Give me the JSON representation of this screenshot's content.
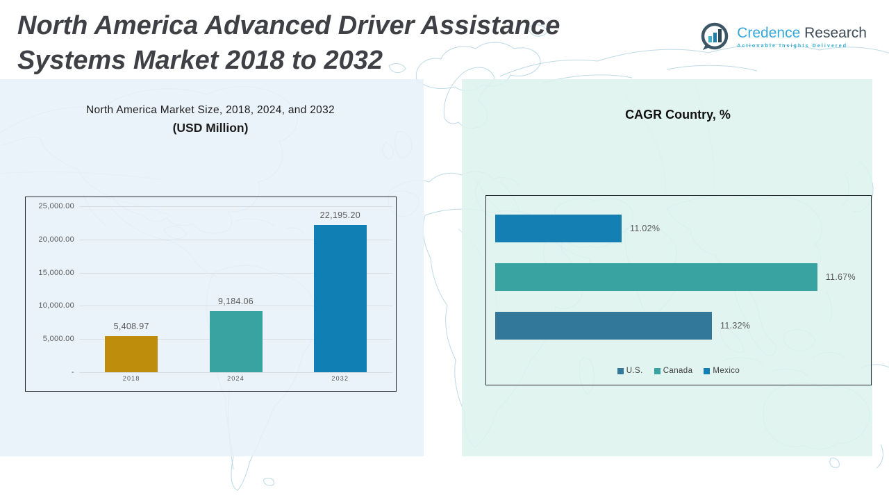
{
  "header": {
    "title_line1": "North America Advanced Driver Assistance",
    "title_line2": "Systems Market 2018 to 2032",
    "logo": {
      "brand_primary": "Credence",
      "brand_secondary": "Research",
      "tagline": "Actionable Insights Delivered",
      "icon": "bar-chart-in-circle",
      "brand_primary_color": "#35a8da",
      "brand_secondary_color": "#3d4a56"
    }
  },
  "chart_data": [
    {
      "type": "bar",
      "title": "North America Market Size, 2018, 2024, and 2032",
      "subtitle": "(USD Million)",
      "categories": [
        "2018",
        "2024",
        "2032"
      ],
      "values": [
        5408.97,
        9184.06,
        22195.2
      ],
      "value_labels": [
        "5,408.97",
        "9,184.06",
        "22,195.20"
      ],
      "bar_colors": [
        "#be8d0b",
        "#38a3a1",
        "#1080b4"
      ],
      "ylim": [
        0,
        25000
      ],
      "yticks": [
        {
          "value": 0,
          "label": "-"
        },
        {
          "value": 5000,
          "label": "5,000.00"
        },
        {
          "value": 10000,
          "label": "10,000.00"
        },
        {
          "value": 15000,
          "label": "15,000.00"
        },
        {
          "value": 20000,
          "label": "20,000.00"
        },
        {
          "value": 25000,
          "label": "25,000.00"
        }
      ],
      "grid": true,
      "legend": false
    },
    {
      "type": "bar",
      "orientation": "horizontal",
      "title": "CAGR Country, %",
      "bars": [
        {
          "name": "Mexico",
          "value": 11.02,
          "label": "11.02%",
          "color": "#147fb3"
        },
        {
          "name": "Canada",
          "value": 11.67,
          "label": "11.67%",
          "color": "#38a3a1"
        },
        {
          "name": "U.S.",
          "value": 11.32,
          "label": "11.32%",
          "color": "#32789b"
        }
      ],
      "legend": [
        {
          "name": "U.S.",
          "color": "#32789b"
        },
        {
          "name": "Canada",
          "color": "#38a3a1"
        },
        {
          "name": "Mexico",
          "color": "#147fb3"
        }
      ],
      "axis_min": 10.6,
      "axis_max": 11.8,
      "grid": false,
      "legend_position": "bottom"
    }
  ]
}
